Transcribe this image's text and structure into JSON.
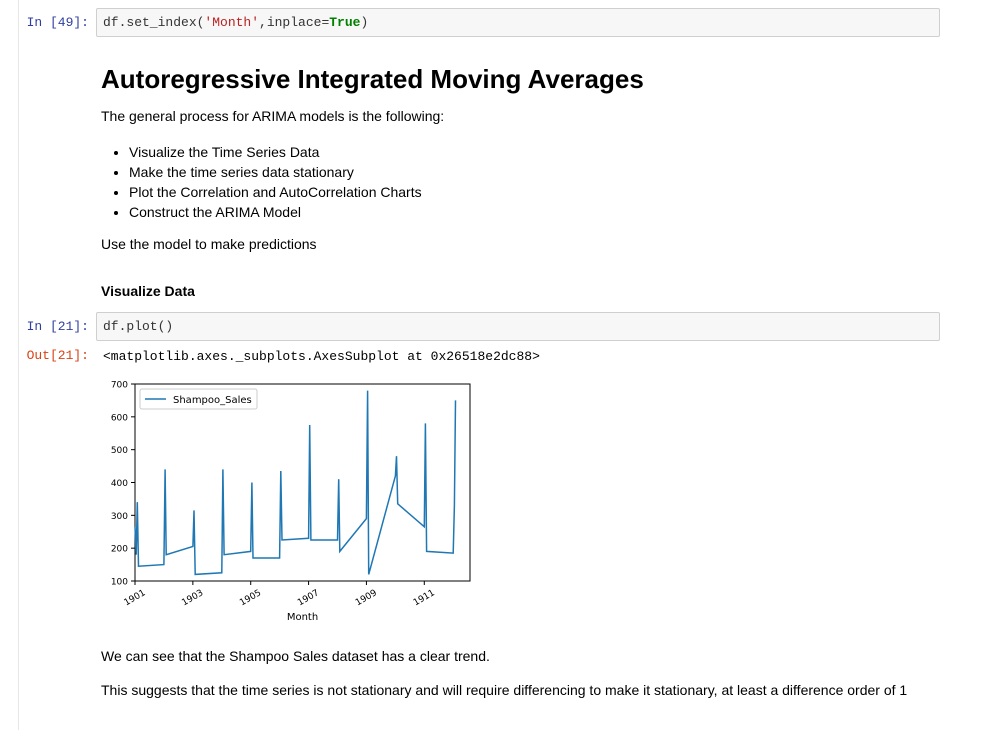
{
  "cells": {
    "c1": {
      "prompt": "In [49]:",
      "code_a": "df.set_index(",
      "code_str": "'Month'",
      "code_b": ",inplace=",
      "code_kw": "True",
      "code_c": ")"
    },
    "md": {
      "title": "Autoregressive Integrated Moving Averages",
      "intro": "The general process for ARIMA models is the following:",
      "bullets": [
        "Visualize the Time Series Data",
        "Make the time series data stationary",
        "Plot the Correlation and AutoCorrelation Charts",
        "Construct the ARIMA Model"
      ],
      "after": "Use the model to make predictions",
      "subheading": "Visualize Data"
    },
    "c2": {
      "prompt": "In [21]:",
      "code": "df.plot()",
      "out_prompt": "Out[21]:",
      "out_text": "<matplotlib.axes._subplots.AxesSubplot at 0x26518e2dc88>"
    },
    "md2": {
      "p1": "We can see that the Shampoo Sales dataset has a clear trend.",
      "p2": "This suggests that the time series is not stationary and will require differencing to make it stationary, at least a difference order of 1"
    }
  },
  "chart_data": {
    "type": "line",
    "title": "",
    "xlabel": "Month",
    "ylabel": "",
    "ylim": [
      100,
      700
    ],
    "xlim": [
      1901.0,
      1912.58
    ],
    "yticks": [
      100,
      200,
      300,
      400,
      500,
      600,
      700
    ],
    "xticks": [
      "1901",
      "1903",
      "1905",
      "1907",
      "1909",
      "1911"
    ],
    "xtick_values": [
      1901,
      1903,
      1905,
      1907,
      1909,
      1911
    ],
    "legend_position": "top-left",
    "series_color": "#1f77b4",
    "series": [
      {
        "name": "Shampoo_Sales",
        "x": [
          1901.0,
          1901.04,
          1901.08,
          1901.12,
          1902.0,
          1902.04,
          1902.08,
          1903.0,
          1903.04,
          1903.08,
          1904.0,
          1904.04,
          1904.08,
          1905.0,
          1905.04,
          1905.08,
          1906.0,
          1906.04,
          1906.08,
          1907.0,
          1907.04,
          1907.08,
          1908.0,
          1908.04,
          1908.08,
          1909.0,
          1909.04,
          1909.08,
          1910.0,
          1910.04,
          1910.08,
          1911.0,
          1911.04,
          1911.08,
          1912.0,
          1912.04,
          1912.08
        ],
        "y": [
          266,
          180,
          340,
          145,
          150,
          440,
          180,
          205,
          315,
          120,
          125,
          440,
          180,
          190,
          400,
          170,
          170,
          435,
          225,
          230,
          575,
          225,
          225,
          410,
          190,
          290,
          680,
          120,
          420,
          480,
          335,
          265,
          580,
          190,
          185,
          330,
          650
        ]
      }
    ]
  }
}
